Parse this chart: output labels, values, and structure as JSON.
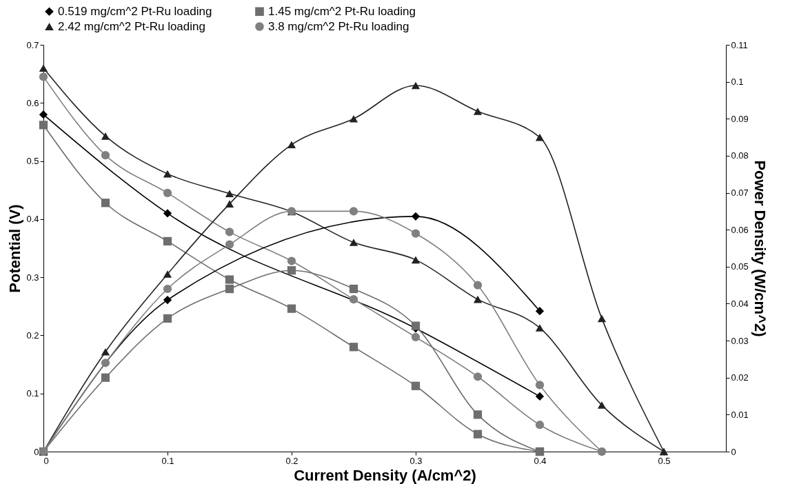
{
  "chart_data": {
    "type": "line",
    "xlabel": "Current Density (A/cm^2)",
    "ylabel": "Potential (V)",
    "y2label": "Power Density (W/cm^2)",
    "xlim": [
      0,
      0.55
    ],
    "xticks": [
      0,
      0.1,
      0.2,
      0.3,
      0.4,
      0.5
    ],
    "ylim": [
      0,
      0.7
    ],
    "yticks": [
      0,
      0.1,
      0.2,
      0.3,
      0.4,
      0.5,
      0.6,
      0.7
    ],
    "y2lim": [
      0,
      0.11
    ],
    "y2ticks": [
      0,
      0.01,
      0.02,
      0.03,
      0.04,
      0.05,
      0.06,
      0.07,
      0.08,
      0.09,
      0.1,
      0.11
    ],
    "grid": false,
    "legend": "top",
    "line_style": "solid",
    "series": [
      {
        "name": "0.519 mg/cm^2 Pt-Ru loading",
        "color": "#000000",
        "marker": "diamond",
        "x": [
          0,
          0.1,
          0.3,
          0.4
        ],
        "values": [
          0.58,
          0.41,
          0.212,
          0.095
        ]
      },
      {
        "name": "1.45 mg/cm^2 Pt-Ru loading",
        "color": "#6e6e6e",
        "marker": "square",
        "x": [
          0,
          0.05,
          0.1,
          0.15,
          0.2,
          0.25,
          0.3,
          0.35,
          0.4
        ],
        "values": [
          0.562,
          0.428,
          0.362,
          0.296,
          0.246,
          0.18,
          0.113,
          0.03,
          0
        ]
      },
      {
        "name": "2.42 mg/cm^2 Pt-Ru  loading",
        "color": "#222222",
        "marker": "triangle",
        "x": [
          0,
          0.05,
          0.1,
          0.15,
          0.2,
          0.25,
          0.3,
          0.35,
          0.4,
          0.45,
          0.5
        ],
        "values": [
          0.66,
          0.543,
          0.478,
          0.444,
          0.413,
          0.36,
          0.33,
          0.262,
          0.213,
          0.08,
          0
        ]
      },
      {
        "name": "3.8 mg/cm^2 Pt-Ru loading",
        "color": "#808080",
        "marker": "circle",
        "x": [
          0,
          0.05,
          0.1,
          0.15,
          0.2,
          0.25,
          0.3,
          0.35,
          0.4,
          0.45
        ],
        "values": [
          0.645,
          0.51,
          0.445,
          0.378,
          0.328,
          0.262,
          0.197,
          0.129,
          0.046,
          0
        ]
      },
      {
        "color": "#000000",
        "marker": "diamond",
        "axis": "y2",
        "x": [
          0,
          0.1,
          0.3,
          0.4
        ],
        "values": [
          0,
          0.041,
          0.0636,
          0.038
        ]
      },
      {
        "color": "#6e6e6e",
        "marker": "square",
        "axis": "y2",
        "x": [
          0,
          0.05,
          0.1,
          0.15,
          0.2,
          0.25,
          0.3,
          0.35,
          0.4
        ],
        "values": [
          0,
          0.02,
          0.036,
          0.044,
          0.049,
          0.044,
          0.034,
          0.01,
          0
        ]
      },
      {
        "color": "#222222",
        "marker": "triangle",
        "axis": "y2",
        "x": [
          0,
          0.05,
          0.1,
          0.15,
          0.2,
          0.25,
          0.3,
          0.35,
          0.4,
          0.45,
          0.5
        ],
        "values": [
          0,
          0.027,
          0.048,
          0.067,
          0.083,
          0.09,
          0.099,
          0.092,
          0.085,
          0.036,
          0
        ]
      },
      {
        "color": "#808080",
        "marker": "circle",
        "axis": "y2",
        "x": [
          0,
          0.05,
          0.1,
          0.15,
          0.2,
          0.25,
          0.3,
          0.35,
          0.4,
          0.45
        ],
        "values": [
          0,
          0.024,
          0.044,
          0.056,
          0.065,
          0.065,
          0.059,
          0.045,
          0.018,
          0
        ]
      }
    ]
  }
}
